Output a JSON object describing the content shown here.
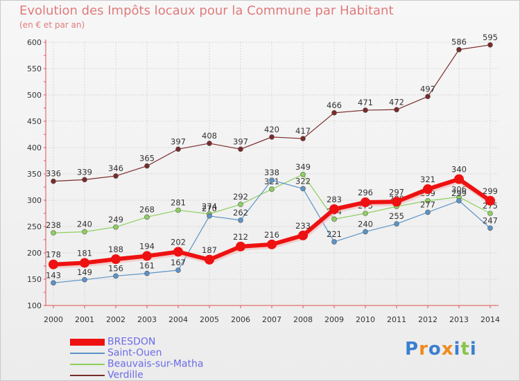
{
  "chart_data": {
    "type": "line",
    "title": "Evolution des Impôts locaux pour la Commune par Habitant",
    "subtitle": "(en € et par an)",
    "x": [
      "2000",
      "2001",
      "2002",
      "2003",
      "2004",
      "2005",
      "2006",
      "2007",
      "2008",
      "2009",
      "2010",
      "2011",
      "2012",
      "2013",
      "2014"
    ],
    "ylim": [
      100,
      600
    ],
    "yticks": [
      100,
      150,
      200,
      250,
      300,
      350,
      400,
      450,
      500,
      550,
      600
    ],
    "grid": true,
    "legend_position": "bottom-left",
    "series": [
      {
        "name": "Verdille",
        "color": "#7a2a2a",
        "values": [
          336,
          339,
          346,
          365,
          397,
          408,
          397,
          420,
          417,
          466,
          471,
          472,
          497,
          586,
          595
        ],
        "labels": [
          "336",
          "339",
          "346",
          "365",
          "397",
          "408",
          "397",
          "420",
          "417",
          "466",
          "471",
          "472",
          "497",
          "586",
          "595"
        ]
      },
      {
        "name": "Beauvais-sur-Matha",
        "color": "#8ecf5e",
        "values": [
          238,
          240,
          249,
          268,
          281,
          274,
          292,
          321,
          349,
          264,
          275,
          288,
          299,
          306,
          275
        ],
        "labels": [
          "238",
          "240",
          "249",
          "268",
          "281",
          "274",
          "292",
          "321",
          "349",
          "264",
          "275",
          "288",
          "299",
          "306",
          "275"
        ]
      },
      {
        "name": "Saint-Ouen",
        "color": "#5b93c6",
        "values": [
          143,
          149,
          156,
          161,
          167,
          270,
          262,
          338,
          322,
          221,
          240,
          255,
          277,
          299,
          247
        ],
        "labels": [
          "143",
          "149",
          "156",
          "161",
          "167",
          "270",
          "262",
          "338",
          "322",
          "221",
          "240",
          "255",
          "277",
          "299",
          "247"
        ]
      },
      {
        "name": "BRESDON",
        "color": "#ee1111",
        "values": [
          178,
          181,
          188,
          194,
          202,
          187,
          212,
          216,
          233,
          283,
          296,
          297,
          321,
          340,
          299
        ],
        "labels": [
          "178",
          "181",
          "188",
          "194",
          "202",
          "187",
          "212",
          "216",
          "233",
          "283",
          "296",
          "297",
          "321",
          "340",
          "299"
        ]
      }
    ],
    "legend": [
      "BRESDON",
      "Saint-Ouen",
      "Beauvais-sur-Matha",
      "Verdille"
    ]
  },
  "brand": {
    "logo_text": "Proxiti"
  }
}
